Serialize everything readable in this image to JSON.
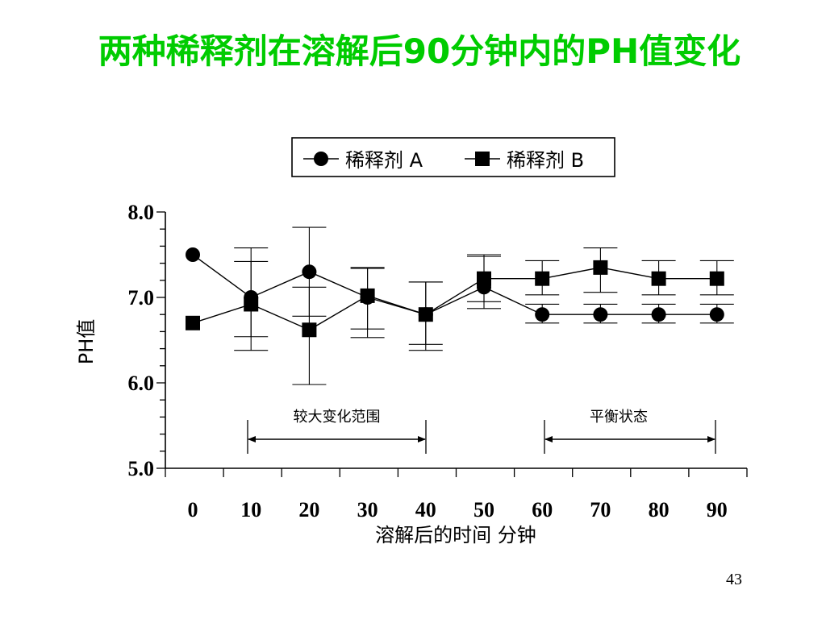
{
  "slide": {
    "title": "两种稀释剂在溶解后90分钟内的PH值变化",
    "page_number": "43"
  },
  "colors": {
    "title": "#00cc00",
    "ink": "#000000"
  },
  "chart_data": {
    "type": "line",
    "title": "",
    "xlabel": "溶解后的时间    分钟",
    "ylabel": "PH值",
    "x": [
      0,
      10,
      20,
      30,
      40,
      50,
      60,
      70,
      80,
      90
    ],
    "x_tick_labels": [
      "0",
      "10",
      "20",
      "30",
      "40",
      "50",
      "60",
      "70",
      "80",
      "90"
    ],
    "y_tick_labels": [
      "8.0",
      "7.0",
      "6.0",
      "5.0"
    ],
    "y_ticks": [
      8.0,
      7.0,
      6.0,
      5.0
    ],
    "ylim": [
      5.0,
      8.0
    ],
    "xlim": [
      -5,
      95
    ],
    "grid": false,
    "legend_position": "top-center",
    "series": [
      {
        "name": "稀释剂 A",
        "marker": "circle",
        "values": [
          7.5,
          7.0,
          7.3,
          7.0,
          6.8,
          7.12,
          6.8,
          6.8,
          6.8,
          6.8
        ],
        "error_bars": [
          null,
          [
            6.54,
            7.42
          ],
          [
            6.78,
            7.82
          ],
          [
            6.63,
            7.35
          ],
          [
            6.38,
            7.18
          ],
          [
            6.87,
            7.5
          ],
          [
            6.7,
            6.92
          ],
          [
            6.7,
            6.92
          ],
          [
            6.7,
            6.92
          ],
          [
            6.7,
            6.92
          ]
        ]
      },
      {
        "name": "稀释剂 B",
        "marker": "square",
        "values": [
          6.7,
          6.92,
          6.62,
          7.02,
          6.8,
          7.22,
          7.22,
          7.35,
          7.22,
          7.22
        ],
        "error_bars": [
          null,
          [
            6.38,
            7.58
          ],
          [
            5.98,
            7.12
          ],
          [
            6.53,
            7.34
          ],
          [
            6.45,
            7.18
          ],
          [
            6.95,
            7.48
          ],
          [
            7.03,
            7.43
          ],
          [
            7.06,
            7.58
          ],
          [
            7.03,
            7.43
          ],
          [
            7.03,
            7.43
          ]
        ]
      }
    ],
    "annotations": [
      {
        "text": "较大变化范围",
        "x_start": 10,
        "x_end": 40
      },
      {
        "text": "平衡状态",
        "x_start": 60,
        "x_end": 90
      }
    ]
  }
}
